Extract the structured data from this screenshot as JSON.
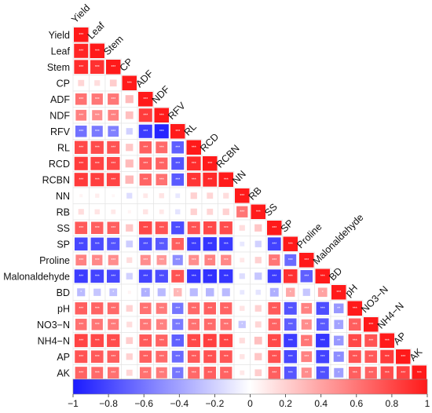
{
  "chart_data": {
    "type": "heatmap",
    "variables": [
      "Yield",
      "Leaf",
      "Stem",
      "CP",
      "ADF",
      "NDF",
      "RFV",
      "RL",
      "RCD",
      "RCBN",
      "NN",
      "RB",
      "SS",
      "SP",
      "Proline",
      "Malonaldehyde",
      "BD",
      "pH",
      "NO3−N",
      "NH4−N",
      "AP",
      "AK"
    ],
    "values": [
      [
        1
      ],
      [
        0.95,
        1
      ],
      [
        0.92,
        0.9,
        1
      ],
      [
        0.18,
        0.15,
        0.22,
        1
      ],
      [
        0.62,
        0.6,
        0.6,
        0.3,
        1
      ],
      [
        0.55,
        0.5,
        0.55,
        0.28,
        0.85,
        1
      ],
      [
        -0.62,
        -0.58,
        -0.55,
        -0.2,
        -0.85,
        -0.95,
        1
      ],
      [
        0.8,
        0.78,
        0.75,
        0.25,
        0.7,
        0.65,
        -0.7,
        1
      ],
      [
        0.85,
        0.82,
        0.8,
        0.3,
        0.72,
        0.68,
        -0.75,
        0.92,
        1
      ],
      [
        0.86,
        0.84,
        0.82,
        0.32,
        0.68,
        0.62,
        -0.72,
        0.88,
        0.93,
        1
      ],
      [
        0.05,
        0.08,
        0.04,
        -0.15,
        0.1,
        0.12,
        -0.1,
        0.2,
        0.18,
        0.15,
        1
      ],
      [
        0.15,
        0.12,
        0.1,
        0.05,
        0.12,
        0.1,
        -0.12,
        0.2,
        0.18,
        0.2,
        0.6,
        1
      ],
      [
        0.72,
        0.7,
        0.7,
        0.25,
        0.8,
        0.75,
        -0.78,
        0.75,
        0.8,
        0.78,
        0.15,
        0.25,
        1
      ],
      [
        -0.8,
        -0.78,
        -0.75,
        -0.22,
        -0.78,
        -0.72,
        0.7,
        -0.85,
        -0.88,
        -0.86,
        -0.1,
        -0.2,
        -0.82,
        1
      ],
      [
        0.55,
        0.52,
        0.5,
        0.15,
        0.5,
        0.45,
        -0.5,
        0.5,
        0.55,
        0.52,
        0.1,
        0.2,
        0.6,
        -0.65,
        1
      ],
      [
        -0.85,
        -0.82,
        -0.8,
        -0.2,
        -0.82,
        -0.78,
        0.75,
        -0.88,
        -0.9,
        -0.88,
        -0.15,
        -0.25,
        -0.85,
        0.9,
        -0.7,
        1
      ],
      [
        -0.3,
        -0.25,
        -0.28,
        0.05,
        -0.35,
        -0.3,
        0.32,
        -0.3,
        -0.32,
        -0.3,
        -0.1,
        -0.12,
        -0.35,
        0.38,
        -0.25,
        0.4,
        1
      ],
      [
        0.7,
        0.68,
        0.65,
        0.2,
        0.62,
        0.58,
        -0.6,
        0.66,
        0.7,
        0.68,
        0.12,
        0.2,
        0.72,
        -0.75,
        0.55,
        -0.78,
        -0.45,
        1
      ],
      [
        0.62,
        0.6,
        0.58,
        0.15,
        0.6,
        0.55,
        -0.58,
        0.62,
        0.65,
        0.62,
        -0.25,
        0.18,
        0.68,
        -0.7,
        0.5,
        -0.72,
        -0.4,
        0.7,
        1
      ],
      [
        0.82,
        0.8,
        0.78,
        0.22,
        0.72,
        0.68,
        -0.7,
        0.8,
        0.84,
        0.82,
        0.15,
        0.28,
        0.8,
        -0.85,
        0.6,
        -0.88,
        -0.45,
        0.8,
        0.75,
        1
      ],
      [
        0.75,
        0.72,
        0.7,
        0.2,
        0.7,
        0.65,
        -0.65,
        0.72,
        0.76,
        0.74,
        0.12,
        0.25,
        0.76,
        -0.8,
        0.55,
        -0.82,
        -0.5,
        0.75,
        0.72,
        0.85,
        1
      ],
      [
        0.68,
        0.65,
        0.62,
        0.18,
        0.62,
        0.58,
        -0.6,
        0.66,
        0.7,
        0.68,
        0.1,
        0.22,
        0.7,
        -0.74,
        0.5,
        -0.76,
        -0.42,
        0.7,
        0.68,
        0.78,
        0.82,
        1
      ]
    ],
    "significance": [
      [
        "***"
      ],
      [
        "***",
        "***"
      ],
      [
        "***",
        "***",
        "***"
      ],
      [
        "",
        "",
        "",
        "***"
      ],
      [
        "***",
        "***",
        "***",
        "",
        "***"
      ],
      [
        "***",
        "***",
        "***",
        "",
        "***",
        "***"
      ],
      [
        "***",
        "***",
        "***",
        "",
        "***",
        "***",
        "***"
      ],
      [
        "***",
        "***",
        "***",
        "",
        "***",
        "***",
        "***",
        "***"
      ],
      [
        "***",
        "***",
        "***",
        "",
        "***",
        "***",
        "***",
        "***",
        "***"
      ],
      [
        "***",
        "***",
        "***",
        "",
        "***",
        "***",
        "***",
        "***",
        "***",
        "***"
      ],
      [
        "",
        "",
        "",
        "",
        "",
        "",
        "",
        "",
        "",
        "",
        "***"
      ],
      [
        "",
        "",
        "",
        "",
        "",
        "",
        "",
        "",
        "",
        "",
        "***",
        "***"
      ],
      [
        "***",
        "***",
        "***",
        "",
        "***",
        "***",
        "***",
        "***",
        "***",
        "***",
        "",
        "",
        "***"
      ],
      [
        "***",
        "***",
        "***",
        "",
        "***",
        "***",
        "***",
        "***",
        "***",
        "***",
        "",
        "",
        "***",
        "***"
      ],
      [
        "***",
        "***",
        "***",
        "",
        "***",
        "***",
        "***",
        "***",
        "***",
        "***",
        "",
        "",
        "***",
        "***",
        "***"
      ],
      [
        "***",
        "***",
        "***",
        "",
        "***",
        "***",
        "***",
        "***",
        "***",
        "***",
        "",
        "",
        "***",
        "***",
        "***",
        "***"
      ],
      [
        "*",
        "",
        "*",
        "",
        "*",
        "",
        "*",
        "",
        "",
        "",
        "",
        "",
        "*",
        "*",
        "",
        "*",
        "***"
      ],
      [
        "***",
        "***",
        "***",
        "",
        "***",
        "***",
        "***",
        "***",
        "***",
        "***",
        "",
        "",
        "***",
        "***",
        "***",
        "***",
        "**",
        "***"
      ],
      [
        "***",
        "***",
        "***",
        "",
        "***",
        "**",
        "***",
        "***",
        "***",
        "***",
        "*",
        "",
        "***",
        "***",
        "**",
        "***",
        "*",
        "***",
        "***"
      ],
      [
        "***",
        "***",
        "***",
        "",
        "***",
        "***",
        "***",
        "***",
        "***",
        "***",
        "",
        "",
        "***",
        "***",
        "***",
        "***",
        "**",
        "***",
        "***",
        "***"
      ],
      [
        "***",
        "***",
        "***",
        "",
        "***",
        "***",
        "***",
        "***",
        "***",
        "***",
        "",
        "",
        "***",
        "***",
        "***",
        "***",
        "**",
        "***",
        "***",
        "***",
        "***"
      ],
      [
        "***",
        "***",
        "***",
        "",
        "***",
        "***",
        "***",
        "***",
        "***",
        "***",
        "",
        "",
        "***",
        "***",
        "**",
        "***",
        "*",
        "***",
        "***",
        "***",
        "***",
        "***"
      ]
    ],
    "colorbar": {
      "range": [
        -1,
        1
      ],
      "ticks": [
        "−1",
        "−0.8",
        "−0.6",
        "−0.4",
        "−0.2",
        "0",
        "0.2",
        "0.4",
        "0.6",
        "0.8",
        "1"
      ],
      "colors": {
        "negative": "#1a1aff",
        "zero": "#ffffff",
        "positive": "#ff1a1a"
      }
    }
  }
}
